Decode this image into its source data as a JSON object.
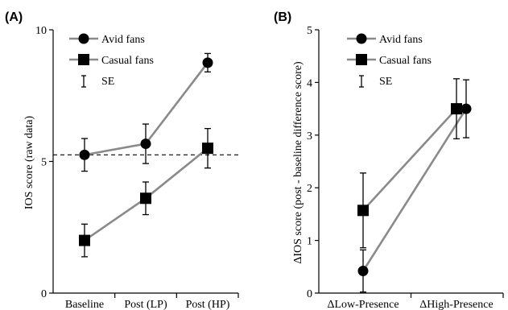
{
  "chart_data": [
    {
      "type": "line",
      "panel_label": "(A)",
      "title": "",
      "xlabel": "",
      "ylabel": "IOS score (raw data)",
      "categories": [
        "Baseline",
        "Post (LP)",
        "Post (HP)"
      ],
      "ylim": [
        0,
        10
      ],
      "yticks": [
        "0",
        "5",
        "10"
      ],
      "reference_line": {
        "y": 5.25,
        "style": "dashed"
      },
      "grid": false,
      "legend_position": "top-left",
      "series": [
        {
          "name": "Avid fans",
          "marker": "circle",
          "values": [
            5.25,
            5.67,
            8.75
          ],
          "se": [
            0.62,
            0.75,
            0.35
          ]
        },
        {
          "name": "Casual fans",
          "marker": "square",
          "values": [
            2.0,
            3.6,
            5.5
          ],
          "se": [
            0.62,
            0.62,
            0.75
          ]
        }
      ],
      "legend": {
        "series1": "Avid fans",
        "series2": "Casual fans",
        "se": "SE"
      }
    },
    {
      "type": "line",
      "panel_label": "(B)",
      "title": "",
      "xlabel": "",
      "ylabel": "ΔIOS score (post - baseline difference score)",
      "categories": [
        "ΔLow-Presence",
        "ΔHigh-Presence"
      ],
      "ylim": [
        0,
        5
      ],
      "yticks": [
        "0",
        "1",
        "2",
        "3",
        "4",
        "5"
      ],
      "grid": false,
      "legend_position": "top-left",
      "series": [
        {
          "name": "Avid fans",
          "marker": "circle",
          "values": [
            0.42,
            3.5
          ],
          "se": [
            0.4,
            0.55
          ]
        },
        {
          "name": "Casual fans",
          "marker": "square",
          "values": [
            1.57,
            3.5
          ],
          "se": [
            0.71,
            0.57
          ]
        }
      ],
      "legend": {
        "series1": "Avid fans",
        "series2": "Casual fans",
        "se": "SE"
      }
    }
  ]
}
